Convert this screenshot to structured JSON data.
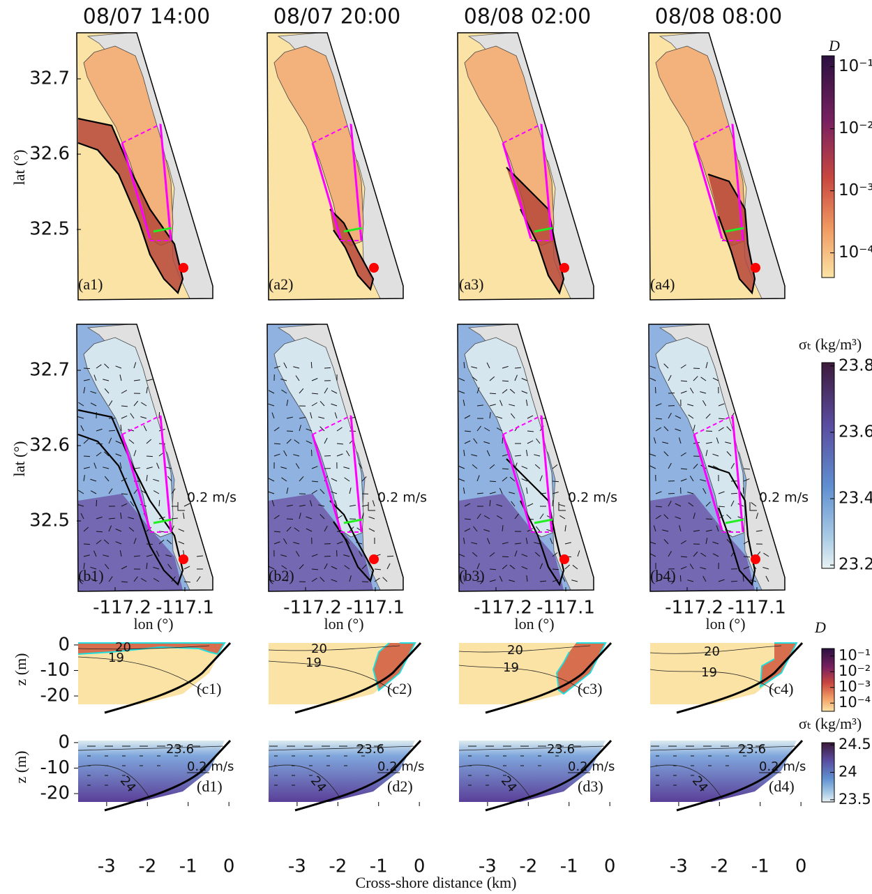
{
  "figure": {
    "columns": [
      "08/07 14:00",
      "08/07 20:00",
      "08/08 02:00",
      "08/08 08:00"
    ],
    "map": {
      "ylabel": "lat (°)",
      "xlabel": "lon (°)",
      "ylim": [
        32.4065,
        32.763
      ],
      "yticks": [
        32.5,
        32.6,
        32.7
      ],
      "xlim": [
        -117.255,
        -117.06
      ],
      "xticks": [
        -117.2,
        -117.1
      ],
      "scale_label": "0.2 m/s"
    },
    "panels_a": [
      "(a1)",
      "(a2)",
      "(a3)",
      "(a4)"
    ],
    "panels_b": [
      "(b1)",
      "(b2)",
      "(b3)",
      "(b4)"
    ],
    "panels_c": [
      "(c1)",
      "(c2)",
      "(c3)",
      "(c4)"
    ],
    "panels_d": [
      "(d1)",
      "(d2)",
      "(d3)",
      "(d4)"
    ],
    "section": {
      "ylabel": "z (m)",
      "xlabel": "Cross-shore distance (km)",
      "ylim": [
        -23,
        2.7
      ],
      "yticks": [
        0,
        -10,
        -20
      ],
      "xlim": [
        -3.7,
        0.1
      ],
      "xticks": [
        -3,
        -2,
        -1,
        0
      ],
      "scale_label": "0.2 m/s",
      "contours_c": [
        "20",
        "19"
      ],
      "contours_d": [
        "23.6",
        "24"
      ]
    },
    "colorbar_a": {
      "label": "D",
      "log": true,
      "lim": [
        4e-05,
        0.15
      ],
      "ticks": [
        {
          "value": 0.1,
          "label": "10⁻¹"
        },
        {
          "value": 0.01,
          "label": "10⁻²"
        },
        {
          "value": 0.001,
          "label": "10⁻³"
        },
        {
          "value": 0.0001,
          "label": "10⁻⁴"
        }
      ]
    },
    "colorbar_b": {
      "label": "σₜ (kg/m³)",
      "log": false,
      "lim": [
        23.19,
        23.81
      ],
      "ticks": [
        23.2,
        23.4,
        23.6,
        23.8
      ]
    },
    "colorbar_c": {
      "label": "D",
      "log": true,
      "lim": [
        3e-05,
        0.3
      ],
      "ticks": [
        {
          "value": 0.1,
          "label": "10⁻¹"
        },
        {
          "value": 0.01,
          "label": "10⁻²"
        },
        {
          "value": 0.001,
          "label": "10⁻³"
        },
        {
          "value": 0.0001,
          "label": "10⁻⁴"
        }
      ]
    },
    "colorbar_d": {
      "label": "σₜ (kg/m³)",
      "log": false,
      "lim": [
        23.46,
        24.54
      ],
      "ticks": [
        23.5,
        24,
        24.5
      ]
    }
  }
}
